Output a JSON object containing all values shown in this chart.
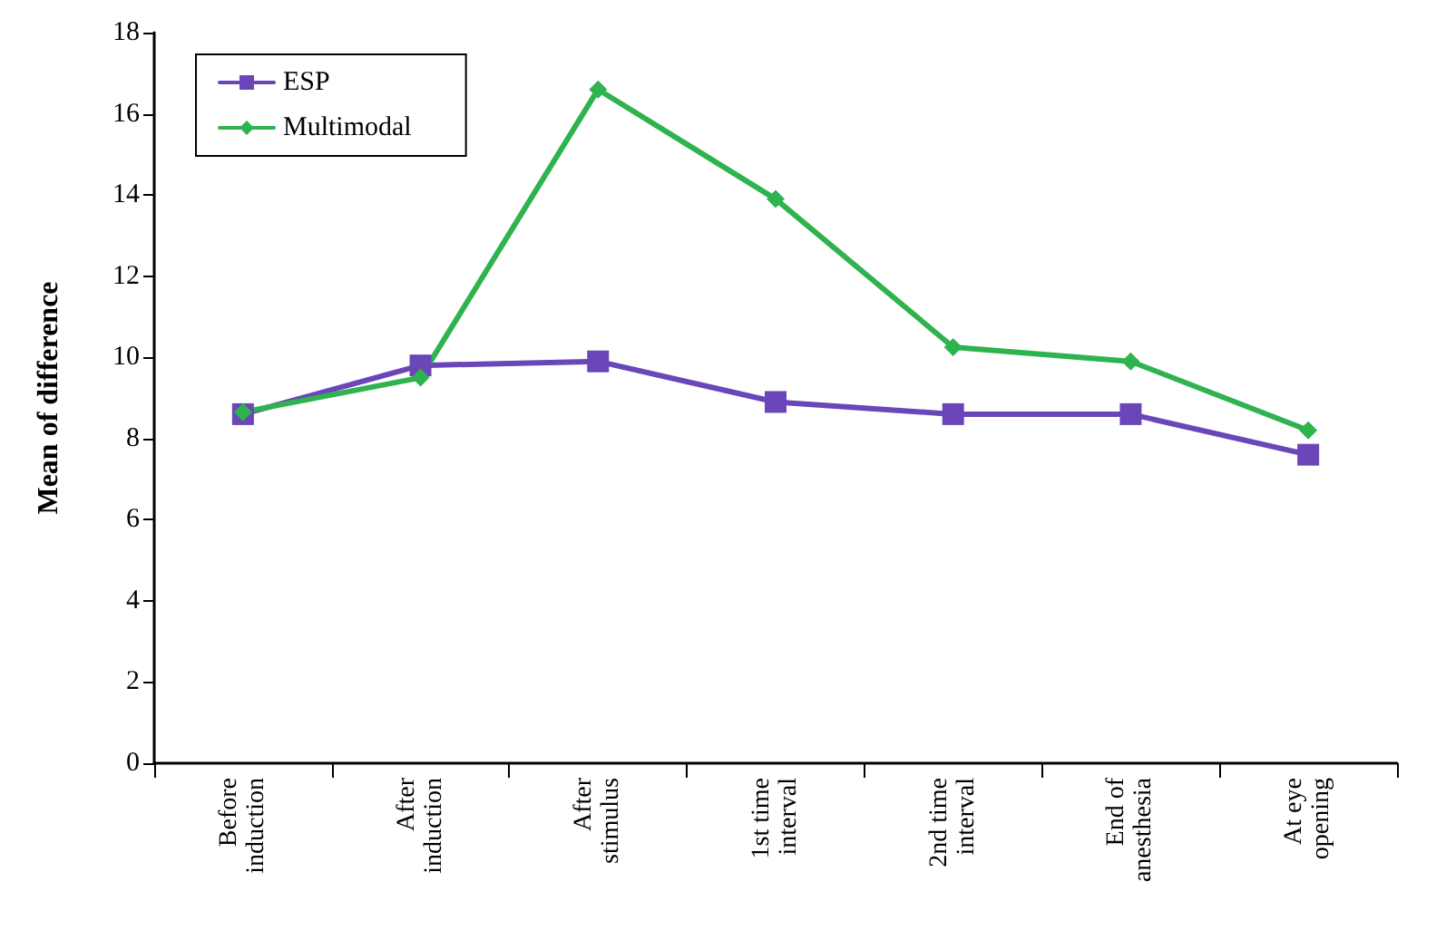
{
  "chart_data": {
    "type": "line",
    "ylabel": "Mean of difference",
    "categories": [
      "Before induction",
      "After induction",
      "After stimulus",
      "1st time interval",
      "2nd time interval",
      "End of anesthesia",
      "At eye opening"
    ],
    "series": [
      {
        "name": "ESP",
        "color": "#6b46b8",
        "marker": "square",
        "values": [
          8.6,
          9.8,
          9.9,
          8.9,
          8.6,
          8.6,
          7.6
        ]
      },
      {
        "name": "Multimodal",
        "color": "#2eb34f",
        "marker": "diamond",
        "values": [
          8.65,
          9.5,
          16.6,
          13.9,
          10.25,
          9.9,
          8.2
        ]
      }
    ],
    "ylim": [
      0,
      18
    ],
    "yticks": [
      0,
      2,
      4,
      6,
      8,
      10,
      12,
      14,
      16,
      18
    ],
    "grid": false,
    "legend": "top left",
    "line_style": "solid"
  }
}
